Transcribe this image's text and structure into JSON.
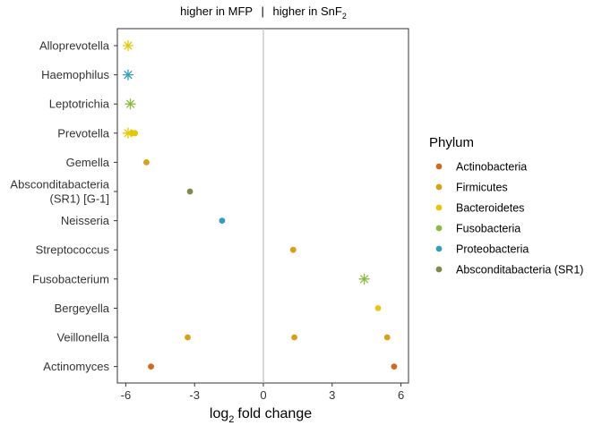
{
  "chart_data": {
    "type": "scatter",
    "title_left": "higher in MFP",
    "title_separator": "|",
    "title_right": "higher in SnF",
    "title_right_subscript": "2",
    "xlabel": "fold change",
    "xlabel_prefix": "log",
    "xlabel_subscript": "2",
    "ylabel": "",
    "xlim": [
      -6.4,
      6.4
    ],
    "xticks": [
      -6,
      -3,
      0,
      3,
      6
    ],
    "xtick_labels": [
      "-6",
      "-3",
      "0",
      "3",
      "6"
    ],
    "vline_x": 0,
    "grid": false,
    "categories": [
      {
        "name": "Alloprevotella",
        "lines": [
          "Alloprevotella"
        ]
      },
      {
        "name": "Haemophilus",
        "lines": [
          "Haemophilus"
        ]
      },
      {
        "name": "Leptotrichia",
        "lines": [
          "Leptotrichia"
        ]
      },
      {
        "name": "Prevotella",
        "lines": [
          "Prevotella"
        ]
      },
      {
        "name": "Gemella",
        "lines": [
          "Gemella"
        ]
      },
      {
        "name": "Absconditabacteria (SR1) [G-1]",
        "lines": [
          "Absconditabacteria",
          "(SR1) [G-1]"
        ]
      },
      {
        "name": "Neisseria",
        "lines": [
          "Neisseria"
        ]
      },
      {
        "name": "Streptococcus",
        "lines": [
          "Streptococcus"
        ]
      },
      {
        "name": "Fusobacterium",
        "lines": [
          "Fusobacterium"
        ]
      },
      {
        "name": "Bergeyella",
        "lines": [
          "Bergeyella"
        ]
      },
      {
        "name": "Veillonella",
        "lines": [
          "Veillonella"
        ]
      },
      {
        "name": "Actinomyces",
        "lines": [
          "Actinomyces"
        ]
      }
    ],
    "legend": {
      "title": "Phylum",
      "position": "right",
      "items": [
        {
          "name": "Actinobacteria",
          "color": "#D2691E"
        },
        {
          "name": "Firmicutes",
          "color": "#DAA010"
        },
        {
          "name": "Bacteroidetes",
          "color": "#E6C800"
        },
        {
          "name": "Fusobacteria",
          "color": "#8BBB3C"
        },
        {
          "name": "Proteobacteria",
          "color": "#2E9FC0"
        },
        {
          "name": "Absconditabacteria (SR1)",
          "color": "#7E8B45"
        }
      ]
    },
    "points": [
      {
        "category": "Alloprevotella",
        "x": -5.9,
        "phylum": "Bacteroidetes",
        "shape": "asterisk"
      },
      {
        "category": "Haemophilus",
        "x": -5.9,
        "phylum": "Proteobacteria",
        "shape": "asterisk"
      },
      {
        "category": "Leptotrichia",
        "x": -5.8,
        "phylum": "Fusobacteria",
        "shape": "asterisk"
      },
      {
        "category": "Prevotella",
        "x": -5.9,
        "phylum": "Bacteroidetes",
        "shape": "asterisk"
      },
      {
        "category": "Prevotella",
        "x": -5.7,
        "phylum": "Bacteroidetes",
        "shape": "circle"
      },
      {
        "category": "Prevotella",
        "x": -5.6,
        "phylum": "Bacteroidetes",
        "shape": "circle"
      },
      {
        "category": "Gemella",
        "x": -5.1,
        "phylum": "Firmicutes",
        "shape": "circle"
      },
      {
        "category": "Absconditabacteria (SR1) [G-1]",
        "x": -3.2,
        "phylum": "Absconditabacteria (SR1)",
        "shape": "circle"
      },
      {
        "category": "Neisseria",
        "x": -1.8,
        "phylum": "Proteobacteria",
        "shape": "circle"
      },
      {
        "category": "Streptococcus",
        "x": 1.3,
        "phylum": "Firmicutes",
        "shape": "circle"
      },
      {
        "category": "Fusobacterium",
        "x": 4.4,
        "phylum": "Fusobacteria",
        "shape": "asterisk"
      },
      {
        "category": "Bergeyella",
        "x": 5.0,
        "phylum": "Bacteroidetes",
        "shape": "circle"
      },
      {
        "category": "Veillonella",
        "x": -3.3,
        "phylum": "Firmicutes",
        "shape": "circle"
      },
      {
        "category": "Veillonella",
        "x": 1.35,
        "phylum": "Firmicutes",
        "shape": "circle"
      },
      {
        "category": "Veillonella",
        "x": 5.4,
        "phylum": "Firmicutes",
        "shape": "circle"
      },
      {
        "category": "Actinomyces",
        "x": -4.9,
        "phylum": "Actinobacteria",
        "shape": "circle"
      },
      {
        "category": "Actinomyces",
        "x": 5.7,
        "phylum": "Actinobacteria",
        "shape": "circle"
      }
    ]
  }
}
